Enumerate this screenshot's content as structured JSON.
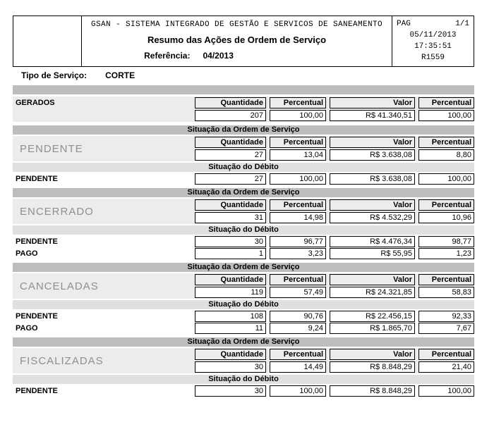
{
  "header": {
    "system_line": "GSAN - SISTEMA INTEGRADO DE GESTÃO E SERVICOS DE SANEAMENTO",
    "title": "Resumo das Ações de Ordem de Serviço",
    "reference_label": "Referência:",
    "reference_value": "04/2013",
    "pag_label": "PAG",
    "pag_value": "1/1",
    "date": "05/11/2013",
    "time": "17:35:51",
    "report_code": "R1559"
  },
  "service_type": {
    "label": "Tipo de Serviço:",
    "value": "CORTE"
  },
  "columns": [
    "Quantidade",
    "Percentual",
    "Valor",
    "Percentual"
  ],
  "bars": {
    "ordem": "Situação da Ordem de Serviço",
    "debito": "Situação do Débito"
  },
  "gerados": {
    "label": "GERADOS",
    "quantidade": "207",
    "percentual": "100,00",
    "valor": "R$ 41.340,51",
    "valor_percentual": "100,00"
  },
  "sections": [
    {
      "label": "PENDENTE",
      "quantidade": "27",
      "percentual": "13,04",
      "valor": "R$ 3.638,08",
      "valor_percentual": "8,80",
      "debitos": [
        {
          "label": "PENDENTE",
          "quantidade": "27",
          "percentual": "100,00",
          "valor": "R$ 3.638,08",
          "valor_percentual": "100,00"
        }
      ]
    },
    {
      "label": "ENCERRADO",
      "quantidade": "31",
      "percentual": "14,98",
      "valor": "R$ 4.532,29",
      "valor_percentual": "10,96",
      "debitos": [
        {
          "label": "PENDENTE",
          "quantidade": "30",
          "percentual": "96,77",
          "valor": "R$ 4.476,34",
          "valor_percentual": "98,77"
        },
        {
          "label": "PAGO",
          "quantidade": "1",
          "percentual": "3,23",
          "valor": "R$ 55,95",
          "valor_percentual": "1,23"
        }
      ]
    },
    {
      "label": "CANCELADAS",
      "quantidade": "119",
      "percentual": "57,49",
      "valor": "R$ 24.321,85",
      "valor_percentual": "58,83",
      "debitos": [
        {
          "label": "PENDENTE",
          "quantidade": "108",
          "percentual": "90,76",
          "valor": "R$ 22.456,15",
          "valor_percentual": "92,33"
        },
        {
          "label": "PAGO",
          "quantidade": "11",
          "percentual": "9,24",
          "valor": "R$ 1.865,70",
          "valor_percentual": "7,67"
        }
      ]
    },
    {
      "label": "FISCALIZADAS",
      "quantidade": "30",
      "percentual": "14,49",
      "valor": "R$ 8.848,29",
      "valor_percentual": "21,40",
      "debitos": [
        {
          "label": "PENDENTE",
          "quantidade": "30",
          "percentual": "100,00",
          "valor": "R$ 8.848,29",
          "valor_percentual": "100,00"
        }
      ]
    }
  ],
  "colors": {
    "bar_dark": "#bdbdbd",
    "bar_light": "#e0e0e0",
    "section_bg": "#ececec"
  }
}
